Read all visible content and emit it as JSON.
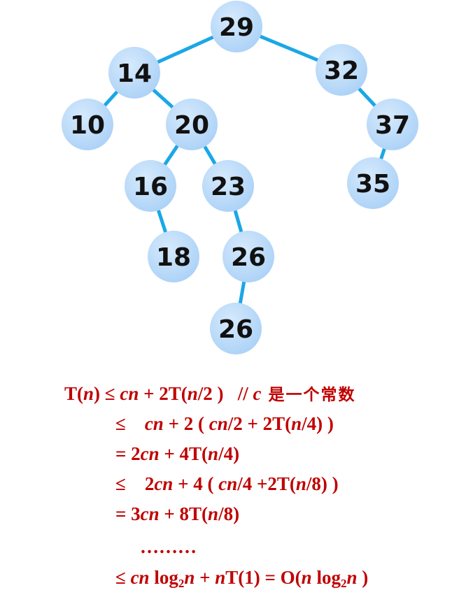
{
  "colors": {
    "node_fill": "#aed3f7",
    "node_fill_light": "#d6eafc",
    "edge": "#1aa7e6",
    "text_red": "#c00000"
  },
  "tree": {
    "nodes": [
      {
        "id": "n29",
        "label": "29"
      },
      {
        "id": "n14",
        "label": "14"
      },
      {
        "id": "n32",
        "label": "32"
      },
      {
        "id": "n10",
        "label": "10"
      },
      {
        "id": "n20",
        "label": "20"
      },
      {
        "id": "n37",
        "label": "37"
      },
      {
        "id": "n16",
        "label": "16"
      },
      {
        "id": "n23",
        "label": "23"
      },
      {
        "id": "n35",
        "label": "35"
      },
      {
        "id": "n18",
        "label": "18"
      },
      {
        "id": "n26a",
        "label": "26"
      },
      {
        "id": "n26b",
        "label": "26"
      }
    ],
    "edges": [
      [
        "n29",
        "n14"
      ],
      [
        "n29",
        "n32"
      ],
      [
        "n14",
        "n10"
      ],
      [
        "n14",
        "n20"
      ],
      [
        "n32",
        "n37"
      ],
      [
        "n37",
        "n35"
      ],
      [
        "n20",
        "n16"
      ],
      [
        "n20",
        "n23"
      ],
      [
        "n16",
        "n18"
      ],
      [
        "n23",
        "n26a"
      ],
      [
        "n26a",
        "n26b"
      ]
    ]
  },
  "derivation": {
    "line1": {
      "T": "T(",
      "n1": "n",
      "p1": ") ≤ ",
      "c1": "cn",
      "p2": " + 2T(",
      "n2": "n",
      "p3": "/2 )   // ",
      "c2": "c",
      "cn_text": " 是一个常数"
    },
    "line2": {
      "op": "≤    ",
      "c1": "cn",
      "p1": " + 2 ( ",
      "c2": "cn",
      "p2": "/2 + 2T(",
      "n1": "n",
      "p3": "/4) )"
    },
    "line3": {
      "op": "= 2",
      "c1": "cn",
      "p1": " + 4T(",
      "n1": "n",
      "p2": "/4)"
    },
    "line4": {
      "op": "≤    2",
      "c1": "cn",
      "p1": " + 4 ( ",
      "c2": "cn",
      "p2": "/4 +2T(",
      "n1": "n",
      "p3": "/8) )"
    },
    "line5": {
      "op": "= 3",
      "c1": "cn",
      "p1": " + 8T(",
      "n1": "n",
      "p2": "/8)"
    },
    "line6": {
      "dots": "………"
    },
    "line7": {
      "op": "≤ ",
      "c1": "cn",
      "p1": " log",
      "s1": "2",
      "n1": "n",
      "p2": " + ",
      "n2": "n",
      "p3": "T(1) = O(",
      "n3": "n",
      "p4": " log",
      "s2": "2",
      "n4": "n",
      "p5": " )"
    }
  }
}
